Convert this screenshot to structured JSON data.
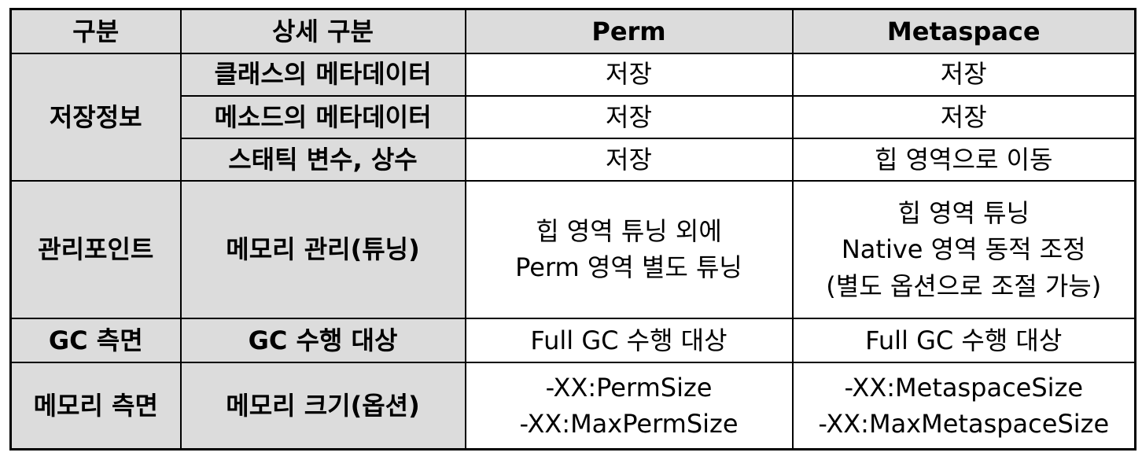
{
  "header": [
    "구분",
    "상세 구분",
    "Perm",
    "Metaspace"
  ],
  "groups": {
    "storage": "저장정보",
    "management": "관리포인트",
    "gc": "GC 측면",
    "memory": "메모리 측면"
  },
  "rows": {
    "class_meta": {
      "label": "클래스의 메타데이터",
      "perm": [
        "저장"
      ],
      "meta": [
        "저장"
      ]
    },
    "method_meta": {
      "label": "메소드의 메타데이터",
      "perm": [
        "저장"
      ],
      "meta": [
        "저장"
      ]
    },
    "static_vars": {
      "label": "스태틱 변수, 상수",
      "perm": [
        "저장"
      ],
      "meta": [
        "힙 영역으로 이동"
      ]
    },
    "tuning": {
      "label": "메모리 관리(튜닝)",
      "perm": [
        "힙 영역 튜닝 외에",
        "Perm 영역 별도 튜닝"
      ],
      "meta": [
        "힙 영역 튜닝",
        "Native 영역 동적 조정",
        "(별도 옵션으로 조절 가능)"
      ]
    },
    "gc_target": {
      "label": "GC 수행 대상",
      "perm": [
        "Full GC 수행 대상"
      ],
      "meta": [
        "Full GC 수행 대상"
      ]
    },
    "mem_size": {
      "label": "메모리 크기(옵션)",
      "perm": [
        "-XX:PermSize",
        "-XX:MaxPermSize"
      ],
      "meta": [
        "-XX:MetaspaceSize",
        "-XX:MaxMetaspaceSize"
      ]
    }
  }
}
